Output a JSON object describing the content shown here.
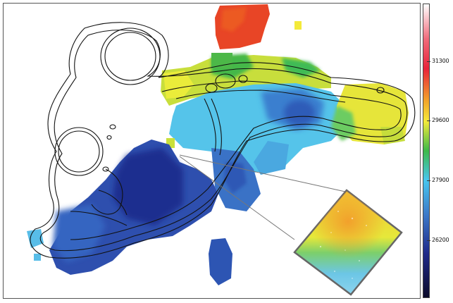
{
  "image": {
    "description_kind": "velocity map with contour overlay and zoom inset"
  },
  "colorbar": {
    "colors": [
      "#ffffff",
      "#e8233a",
      "#f2a52a",
      "#f4ea3a",
      "#3db94a",
      "#48c6ee",
      "#3b78c8",
      "#1f2a8a",
      "#0a0a2a"
    ],
    "ticks": [
      {
        "label": "31300"
      },
      {
        "label": "29600"
      },
      {
        "label": "27900"
      },
      {
        "label": "26200"
      }
    ]
  }
}
